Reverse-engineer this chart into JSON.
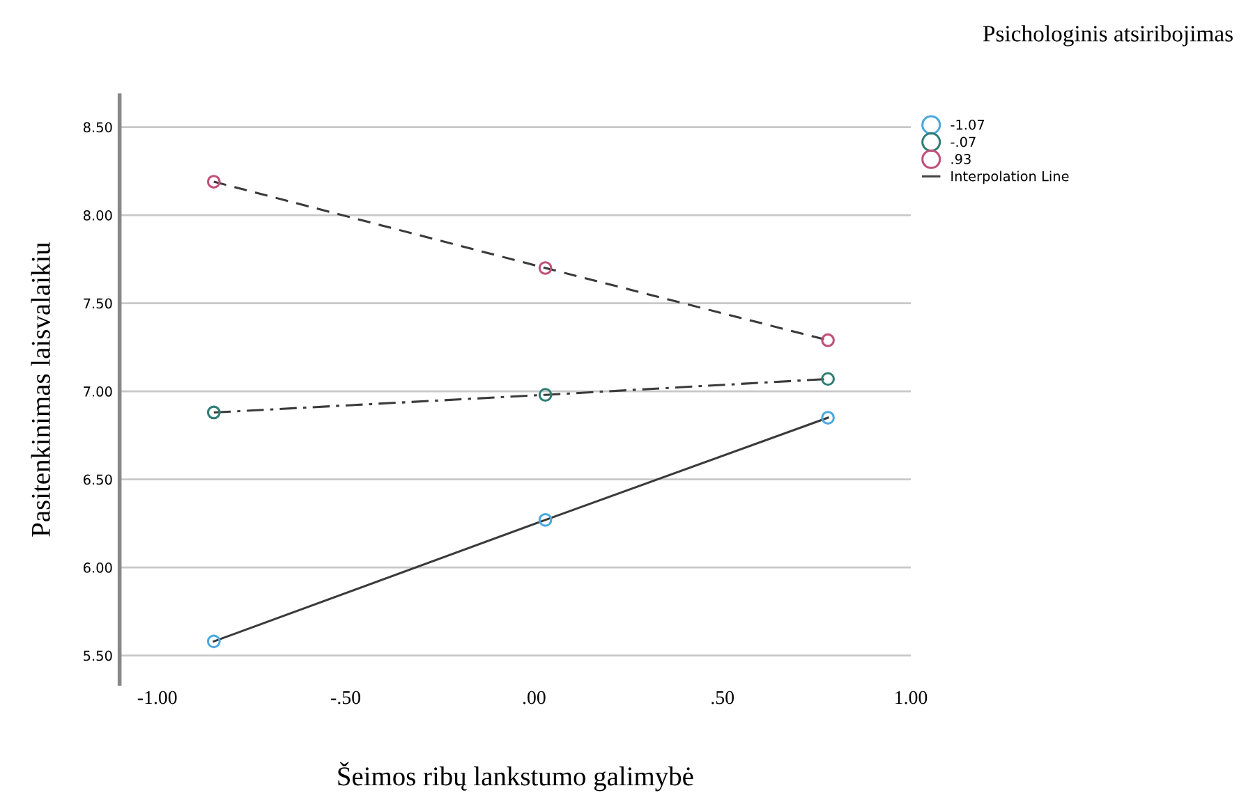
{
  "chart_data": {
    "type": "line",
    "legend_title": "Psichologinis atsiribojimas",
    "xlabel": "Šeimos ribų lankstumo galimybė",
    "ylabel": "Pasitenkinimas laisvalaikiu",
    "x": [
      -0.85,
      0.03,
      0.78
    ],
    "series": [
      {
        "name": "-1.07",
        "color": "#4aa8e0",
        "line_style": "solid",
        "marker": "circle",
        "values": [
          5.58,
          6.27,
          6.85
        ]
      },
      {
        "name": "-.07",
        "color": "#2e7d74",
        "line_style": "dashdot",
        "marker": "circle",
        "values": [
          6.88,
          6.98,
          7.07
        ]
      },
      {
        "name": ".93",
        "color": "#c0507a",
        "line_style": "dashed",
        "marker": "circle",
        "values": [
          8.19,
          7.7,
          7.29
        ]
      },
      {
        "name": "Interpolation Line",
        "color": "#444444",
        "line_style": "solid",
        "marker": "none",
        "values": [
          null,
          null,
          null
        ]
      }
    ],
    "xlim": [
      -1.1,
      1.0
    ],
    "xticks": [
      {
        "value": -1.0,
        "label": "-1.00"
      },
      {
        "value": -0.5,
        "label": "-.50"
      },
      {
        "value": 0.0,
        "label": ".00"
      },
      {
        "value": 0.5,
        "label": ".50"
      },
      {
        "value": 1.0,
        "label": "1.00"
      }
    ],
    "ylim": [
      5.34,
      8.68
    ],
    "yticks": [
      {
        "value": 5.5,
        "label": "5.50"
      },
      {
        "value": 6.0,
        "label": "6.00"
      },
      {
        "value": 6.5,
        "label": "6.50"
      },
      {
        "value": 7.0,
        "label": "7.00"
      },
      {
        "value": 7.5,
        "label": "7.50"
      },
      {
        "value": 8.0,
        "label": "8.00"
      },
      {
        "value": 8.5,
        "label": "8.50"
      }
    ],
    "grid": "y",
    "legend": "right"
  }
}
